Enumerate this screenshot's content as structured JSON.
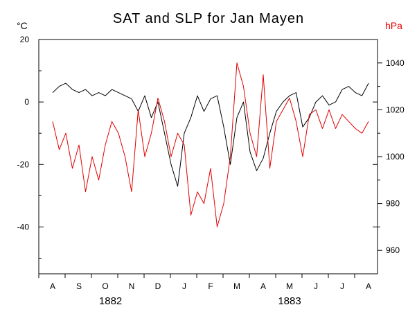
{
  "chart_data": {
    "type": "line",
    "title": "SAT and SLP for Jan Mayen",
    "left_unit": "°C",
    "right_unit": "hPa",
    "colors": {
      "sat": "#000000",
      "slp": "#e00000",
      "axis": "#000000"
    },
    "x_labels": [
      "A",
      "S",
      "O",
      "N",
      "D",
      "J",
      "F",
      "M",
      "A",
      "M",
      "J",
      "J",
      "A"
    ],
    "year_labels": [
      {
        "text": "1882",
        "month": 2.2
      },
      {
        "text": "1883",
        "month": 9.0
      }
    ],
    "xlim": [
      0,
      13
    ],
    "left_axis": {
      "ylim": [
        -55,
        20
      ],
      "ticks": [
        20,
        0,
        -20,
        -40
      ],
      "minor": [
        10,
        -10,
        -30,
        -50
      ]
    },
    "right_axis": {
      "ylim": [
        950,
        1050
      ],
      "ticks": [
        1040,
        1020,
        1000,
        980,
        960
      ],
      "minor": [
        1030,
        1010,
        990,
        970
      ]
    },
    "series": [
      {
        "axis": "left",
        "color": "#000000",
        "x": [
          0,
          0.25,
          0.5,
          0.75,
          1,
          1.25,
          1.5,
          1.75,
          2,
          2.25,
          2.5,
          2.75,
          3,
          3.25,
          3.5,
          3.75,
          4,
          4.25,
          4.5,
          4.75,
          5,
          5.25,
          5.5,
          5.75,
          6,
          6.25,
          6.5,
          6.75,
          7,
          7.25,
          7.5,
          7.75,
          8,
          8.25,
          8.5,
          8.75,
          9,
          9.25,
          9.5,
          9.75,
          10,
          10.25,
          10.5,
          10.75,
          11,
          11.25,
          11.5,
          11.75,
          12
        ],
        "values": [
          3,
          5,
          6,
          4,
          3,
          4,
          2,
          3,
          2,
          4,
          3,
          2,
          1,
          -3,
          2,
          -5,
          0,
          -10,
          -20,
          -27,
          -10,
          -5,
          2,
          -3,
          1,
          2,
          -8,
          -20,
          -5,
          0,
          -16,
          -22,
          -18,
          -10,
          -3,
          0,
          2,
          3,
          -8,
          -5,
          0,
          2,
          -1,
          0,
          4,
          5,
          3,
          2,
          6
        ]
      },
      {
        "axis": "right",
        "color": "#e00000",
        "x": [
          0,
          0.25,
          0.5,
          0.75,
          1,
          1.25,
          1.5,
          1.75,
          2,
          2.25,
          2.5,
          2.75,
          3,
          3.25,
          3.5,
          3.75,
          4,
          4.25,
          4.5,
          4.75,
          5,
          5.25,
          5.5,
          5.75,
          6,
          6.25,
          6.5,
          6.75,
          7,
          7.25,
          7.5,
          7.75,
          8,
          8.25,
          8.5,
          8.75,
          9,
          9.25,
          9.5,
          9.75,
          10,
          10.25,
          10.5,
          10.75,
          11,
          11.25,
          11.5,
          11.75,
          12
        ],
        "values": [
          1015,
          1003,
          1010,
          995,
          1005,
          985,
          1000,
          990,
          1005,
          1015,
          1010,
          1000,
          985,
          1020,
          1000,
          1010,
          1025,
          1015,
          1000,
          1010,
          1005,
          975,
          985,
          980,
          995,
          970,
          980,
          1000,
          1040,
          1030,
          1010,
          1000,
          1035,
          995,
          1015,
          1020,
          1025,
          1015,
          1000,
          1018,
          1020,
          1012,
          1020,
          1012,
          1018,
          1015,
          1012,
          1010,
          1015
        ]
      }
    ]
  }
}
